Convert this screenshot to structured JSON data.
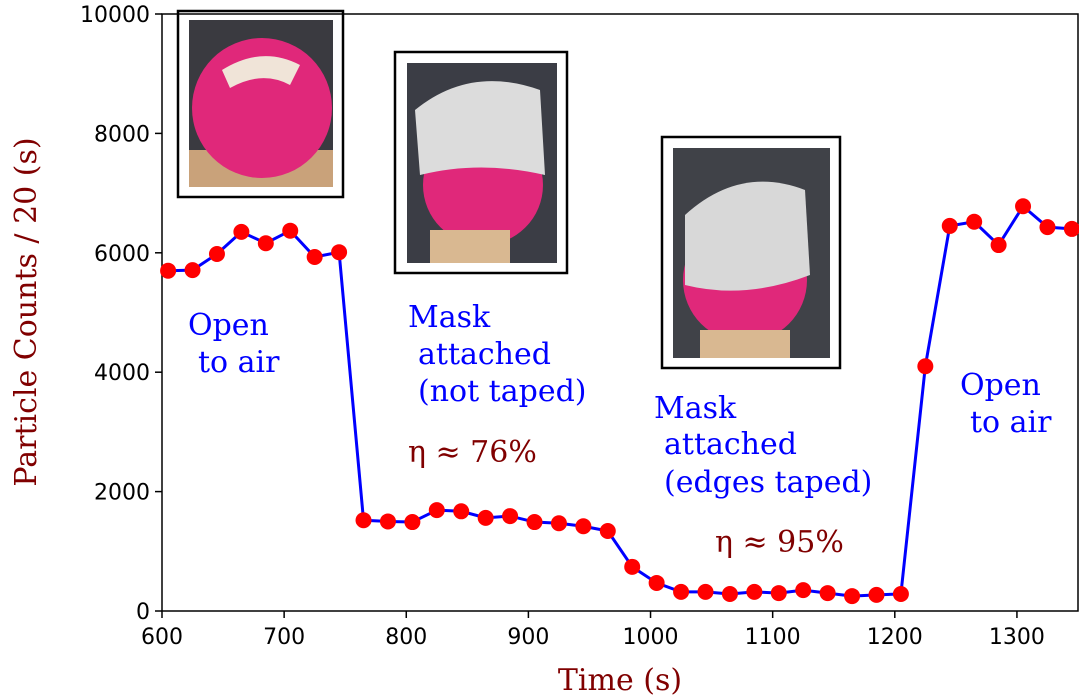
{
  "chart_data": {
    "type": "line",
    "xlabel": "Time (s)",
    "ylabel": "Particle Counts / 20 (s)",
    "x": [
      605,
      625,
      645,
      665,
      685,
      705,
      725,
      745,
      765,
      785,
      805,
      825,
      845,
      865,
      885,
      905,
      925,
      945,
      965,
      985,
      1005,
      1025,
      1045,
      1065,
      1085,
      1105,
      1125,
      1145,
      1165,
      1185,
      1205,
      1225,
      1245,
      1265,
      1285,
      1305,
      1325,
      1345
    ],
    "series": [
      {
        "color": "#0000ff",
        "marker_color": "#ff0000",
        "values": [
          5700,
          5710,
          5980,
          6350,
          6160,
          6370,
          5930,
          6010,
          1520,
          1500,
          1490,
          1690,
          1670,
          1560,
          1590,
          1490,
          1470,
          1420,
          1340,
          740,
          470,
          320,
          320,
          285,
          320,
          300,
          350,
          300,
          250,
          270,
          285,
          4100,
          6450,
          6520,
          6130,
          6780,
          6430,
          6400
        ]
      }
    ],
    "xlim": [
      600,
      1350
    ],
    "xticks": [
      600,
      700,
      800,
      900,
      1000,
      1100,
      1200,
      1300
    ],
    "ylim": [
      0,
      10000
    ],
    "yticks": [
      0,
      2000,
      4000,
      6000,
      8000,
      10000
    ],
    "annotations": [
      {
        "lines": [
          "Open",
          "to air"
        ],
        "color": "#0000ff"
      },
      {
        "lines": [
          "Mask",
          "attached",
          "(not taped)"
        ],
        "color": "#0000ff"
      },
      {
        "lines": [
          "η ≈ 76%"
        ],
        "color": "#800000"
      },
      {
        "lines": [
          "Mask",
          "attached",
          "(edges taped)"
        ],
        "color": "#0000ff"
      },
      {
        "lines": [
          "η ≈ 95%"
        ],
        "color": "#800000"
      },
      {
        "lines": [
          "Open",
          "to air"
        ],
        "color": "#0000ff"
      }
    ]
  }
}
